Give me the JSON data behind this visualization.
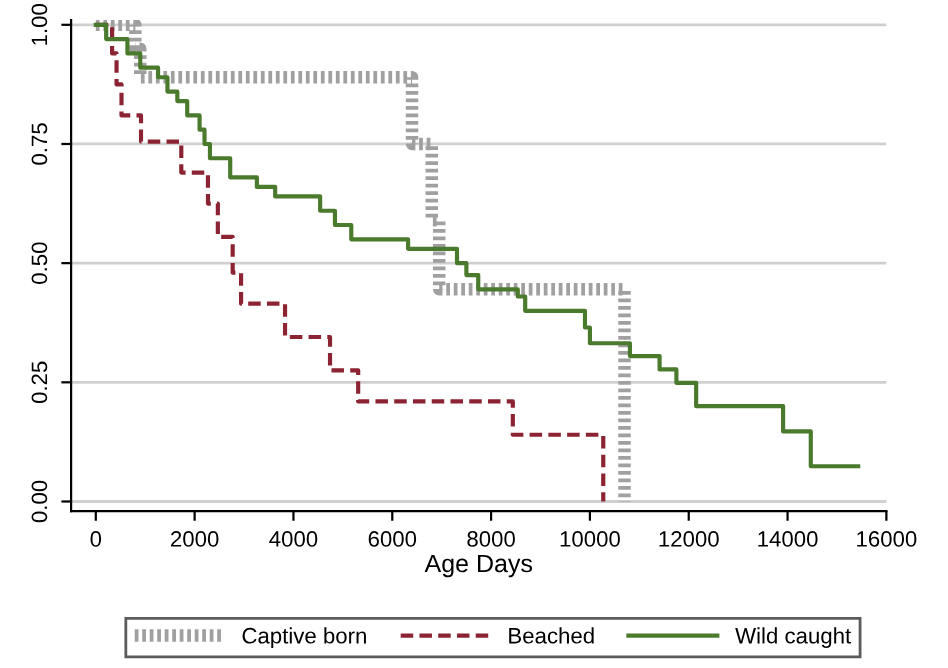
{
  "chart_data": {
    "type": "step",
    "xlabel": "Age Days",
    "xlim": [
      -500,
      16000
    ],
    "ylim": [
      -0.02,
      1.01
    ],
    "xticks": [
      0,
      2000,
      4000,
      6000,
      8000,
      10000,
      12000,
      14000,
      16000
    ],
    "yticks": [
      {
        "value": 0,
        "label": "0.00"
      },
      {
        "value": 0.25,
        "label": "0.25"
      },
      {
        "value": 0.5,
        "label": "0.50"
      },
      {
        "value": 0.75,
        "label": "0.75"
      },
      {
        "value": 1,
        "label": "1.00"
      }
    ],
    "grid": "y",
    "legend": "bottom",
    "series": [
      {
        "name": "Captive born",
        "color": "#a0a0a0",
        "line_style": "dotted",
        "x": [
          0,
          800,
          900,
          6400,
          6800,
          6950,
          10700
        ],
        "values": [
          1,
          0.95,
          0.89,
          0.75,
          0.59,
          0.445,
          0
        ]
      },
      {
        "name": "Beached",
        "color": "#8b2332",
        "line_style": "dashed",
        "x": [
          0,
          330,
          420,
          520,
          915,
          1730,
          2270,
          2470,
          2770,
          2940,
          3830,
          4740,
          5310,
          8440,
          10270
        ],
        "values": [
          1,
          0.94,
          0.875,
          0.81,
          0.755,
          0.69,
          0.625,
          0.555,
          0.48,
          0.415,
          0.345,
          0.275,
          0.21,
          0.14,
          0
        ]
      },
      {
        "name": "Wild caught",
        "color": "#4a7a2c",
        "line_style": "solid",
        "x": [
          0,
          210,
          640,
          900,
          1260,
          1450,
          1650,
          1850,
          2100,
          2200,
          2310,
          2720,
          3260,
          3630,
          4540,
          4840,
          5170,
          6320,
          7310,
          7500,
          7740,
          8540,
          8690,
          9900,
          10000,
          10810,
          11410,
          11750,
          12150,
          13910,
          14470,
          15430
        ],
        "values": [
          1,
          0.97,
          0.94,
          0.91,
          0.89,
          0.86,
          0.84,
          0.81,
          0.78,
          0.75,
          0.72,
          0.68,
          0.66,
          0.64,
          0.61,
          0.58,
          0.55,
          0.53,
          0.5,
          0.475,
          0.445,
          0.43,
          0.4,
          0.365,
          0.332,
          0.305,
          0.277,
          0.249,
          0.2,
          0.147,
          0.074,
          0.074
        ]
      }
    ]
  }
}
